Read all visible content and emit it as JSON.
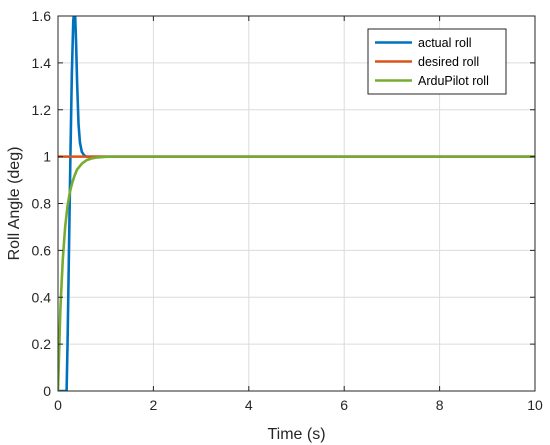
{
  "chart_data": {
    "type": "line",
    "title": "",
    "xlabel": "Time (s)",
    "ylabel": "Roll Angle (deg)",
    "xlim": [
      0,
      10
    ],
    "ylim": [
      0,
      1.6
    ],
    "xticks": [
      0,
      2,
      4,
      6,
      8,
      10
    ],
    "yticks": [
      0,
      0.2,
      0.4,
      0.6,
      0.8,
      1,
      1.2,
      1.4,
      1.6
    ],
    "xtick_labels": [
      "0",
      "2",
      "4",
      "6",
      "8",
      "10"
    ],
    "ytick_labels": [
      "0",
      "0.2",
      "0.4",
      "0.6",
      "0.8",
      "1",
      "1.2",
      "1.4",
      "1.6"
    ],
    "grid": true,
    "legend_position": "top-right",
    "series": [
      {
        "name": "actual roll",
        "color": "#0072BD",
        "x": [
          0,
          0.18,
          0.2,
          0.23,
          0.26,
          0.29,
          0.32,
          0.34,
          0.36,
          0.38,
          0.4,
          0.43,
          0.46,
          0.5,
          0.55,
          0.6,
          0.7,
          0.9,
          10
        ],
        "y": [
          0,
          0,
          0.2,
          0.6,
          1.0,
          1.35,
          1.58,
          1.62,
          1.6,
          1.48,
          1.32,
          1.14,
          1.06,
          1.02,
          1.005,
          1.0,
          1.0,
          1.0,
          1.0
        ]
      },
      {
        "name": "desired roll",
        "color": "#D95319",
        "x": [
          0,
          10
        ],
        "y": [
          1,
          1
        ]
      },
      {
        "name": "ArduPilot roll",
        "color": "#77AC30",
        "x": [
          0,
          0.05,
          0.1,
          0.15,
          0.2,
          0.25,
          0.3,
          0.35,
          0.4,
          0.5,
          0.6,
          0.7,
          0.8,
          1.0,
          1.2,
          10
        ],
        "y": [
          0,
          0.35,
          0.56,
          0.7,
          0.79,
          0.85,
          0.89,
          0.92,
          0.945,
          0.97,
          0.985,
          0.992,
          0.996,
          0.999,
          1.0,
          1.0
        ]
      }
    ]
  }
}
